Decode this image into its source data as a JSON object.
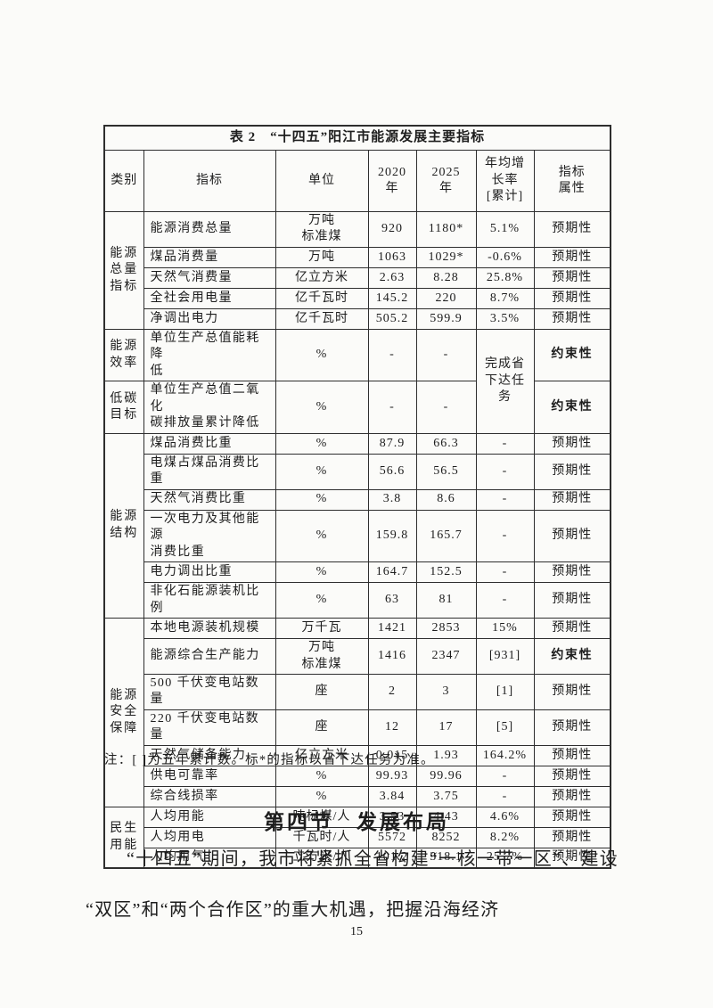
{
  "table": {
    "title": "表 2　“十四五”阳江市能源发展主要指标",
    "headers": {
      "category": "类别",
      "indicator": "指标",
      "unit": "单位",
      "year2020": "2020\n年",
      "year2025": "2025\n年",
      "growth": "年均增\n长率\n[累计]",
      "attribute": "指标\n属性"
    },
    "categories": [
      {
        "label": "能源\n总量\n指标"
      },
      {
        "label": "能源\n效率"
      },
      {
        "label": "低碳\n目标"
      },
      {
        "label": "能源\n结构"
      },
      {
        "label": "能源\n安全\n保障"
      },
      {
        "label": "民生\n用能"
      }
    ],
    "rows": [
      {
        "indicator": "能源消费总量",
        "unit": "万吨\n标准煤",
        "y2020": "920",
        "y2025": "1180*",
        "growth": "5.1%",
        "attribute": "预期性"
      },
      {
        "indicator": "煤品消费量",
        "unit": "万吨",
        "y2020": "1063",
        "y2025": "1029*",
        "growth": "-0.6%",
        "attribute": "预期性"
      },
      {
        "indicator": "天然气消费量",
        "unit": "亿立方米",
        "y2020": "2.63",
        "y2025": "8.28",
        "growth": "25.8%",
        "attribute": "预期性"
      },
      {
        "indicator": "全社会用电量",
        "unit": "亿千瓦时",
        "y2020": "145.2",
        "y2025": "220",
        "growth": "8.7%",
        "attribute": "预期性"
      },
      {
        "indicator": "净调出电力",
        "unit": "亿千瓦时",
        "y2020": "505.2",
        "y2025": "599.9",
        "growth": "3.5%",
        "attribute": "预期性"
      },
      {
        "indicator": "单位生产总值能耗降\n低",
        "unit": "%",
        "y2020": "-",
        "y2025": "-",
        "growth": "完成省\n下达任\n务",
        "attribute": "约束性"
      },
      {
        "indicator": "单位生产总值二氧化\n碳排放量累计降低",
        "unit": "%",
        "y2020": "-",
        "y2025": "-",
        "growth": "",
        "attribute": "约束性"
      },
      {
        "indicator": "煤品消费比重",
        "unit": "%",
        "y2020": "87.9",
        "y2025": "66.3",
        "growth": "-",
        "attribute": "预期性"
      },
      {
        "indicator": "电煤占煤品消费比重",
        "unit": "%",
        "y2020": "56.6",
        "y2025": "56.5",
        "growth": "-",
        "attribute": "预期性"
      },
      {
        "indicator": "天然气消费比重",
        "unit": "%",
        "y2020": "3.8",
        "y2025": "8.6",
        "growth": "-",
        "attribute": "预期性"
      },
      {
        "indicator": "一次电力及其他能源\n消费比重",
        "unit": "%",
        "y2020": "159.8",
        "y2025": "165.7",
        "growth": "-",
        "attribute": "预期性"
      },
      {
        "indicator": "电力调出比重",
        "unit": "%",
        "y2020": "164.7",
        "y2025": "152.5",
        "growth": "-",
        "attribute": "预期性"
      },
      {
        "indicator": "非化石能源装机比例",
        "unit": "%",
        "y2020": "63",
        "y2025": "81",
        "growth": "-",
        "attribute": "预期性"
      },
      {
        "indicator": "本地电源装机规模",
        "unit": "万千瓦",
        "y2020": "1421",
        "y2025": "2853",
        "growth": "15%",
        "attribute": "预期性"
      },
      {
        "indicator": "能源综合生产能力",
        "unit": "万吨\n标准煤",
        "y2020": "1416",
        "y2025": "2347",
        "growth": "[931]",
        "attribute": "约束性"
      },
      {
        "indicator": "500 千伏变电站数量",
        "unit": "座",
        "y2020": "2",
        "y2025": "3",
        "growth": "[1]",
        "attribute": "预期性"
      },
      {
        "indicator": "220 千伏变电站数量",
        "unit": "座",
        "y2020": "12",
        "y2025": "17",
        "growth": "[5]",
        "attribute": "预期性"
      },
      {
        "indicator": "天然气储备能力",
        "unit": "亿立方米",
        "y2020": "0.015",
        "y2025": "1.93",
        "growth": "164.2%",
        "attribute": "预期性"
      },
      {
        "indicator": "供电可靠率",
        "unit": "%",
        "y2020": "99.93",
        "y2025": "99.96",
        "growth": "-",
        "attribute": "预期性"
      },
      {
        "indicator": "综合线损率",
        "unit": "%",
        "y2020": "3.84",
        "y2025": "3.75",
        "growth": "-",
        "attribute": "预期性"
      },
      {
        "indicator": "人均用能",
        "unit": "吨标煤/人",
        "y2020": "3.53",
        "y2025": "4.43",
        "growth": "4.6%",
        "attribute": "预期性"
      },
      {
        "indicator": "人均用电",
        "unit": "千瓦时/人",
        "y2020": "5572",
        "y2025": "8252",
        "growth": "8.2%",
        "attribute": "预期性"
      },
      {
        "indicator": "人均用气",
        "unit": "立方米/人",
        "y2020": "101.2",
        "y2025": "318.1",
        "growth": "25.7%",
        "attribute": "预期性"
      }
    ],
    "note": "注：[ ]为五年累计数。标*的指标以省下达任务为准。"
  },
  "section": {
    "heading": "第四节　发展布局",
    "paragraph": "“十四五”期间，我市将紧抓全省构建“一核一带一区”、建设“双区”和“两个合作区”的重大机遇，把握沿海经济"
  },
  "footer": {
    "page_number": "15"
  }
}
